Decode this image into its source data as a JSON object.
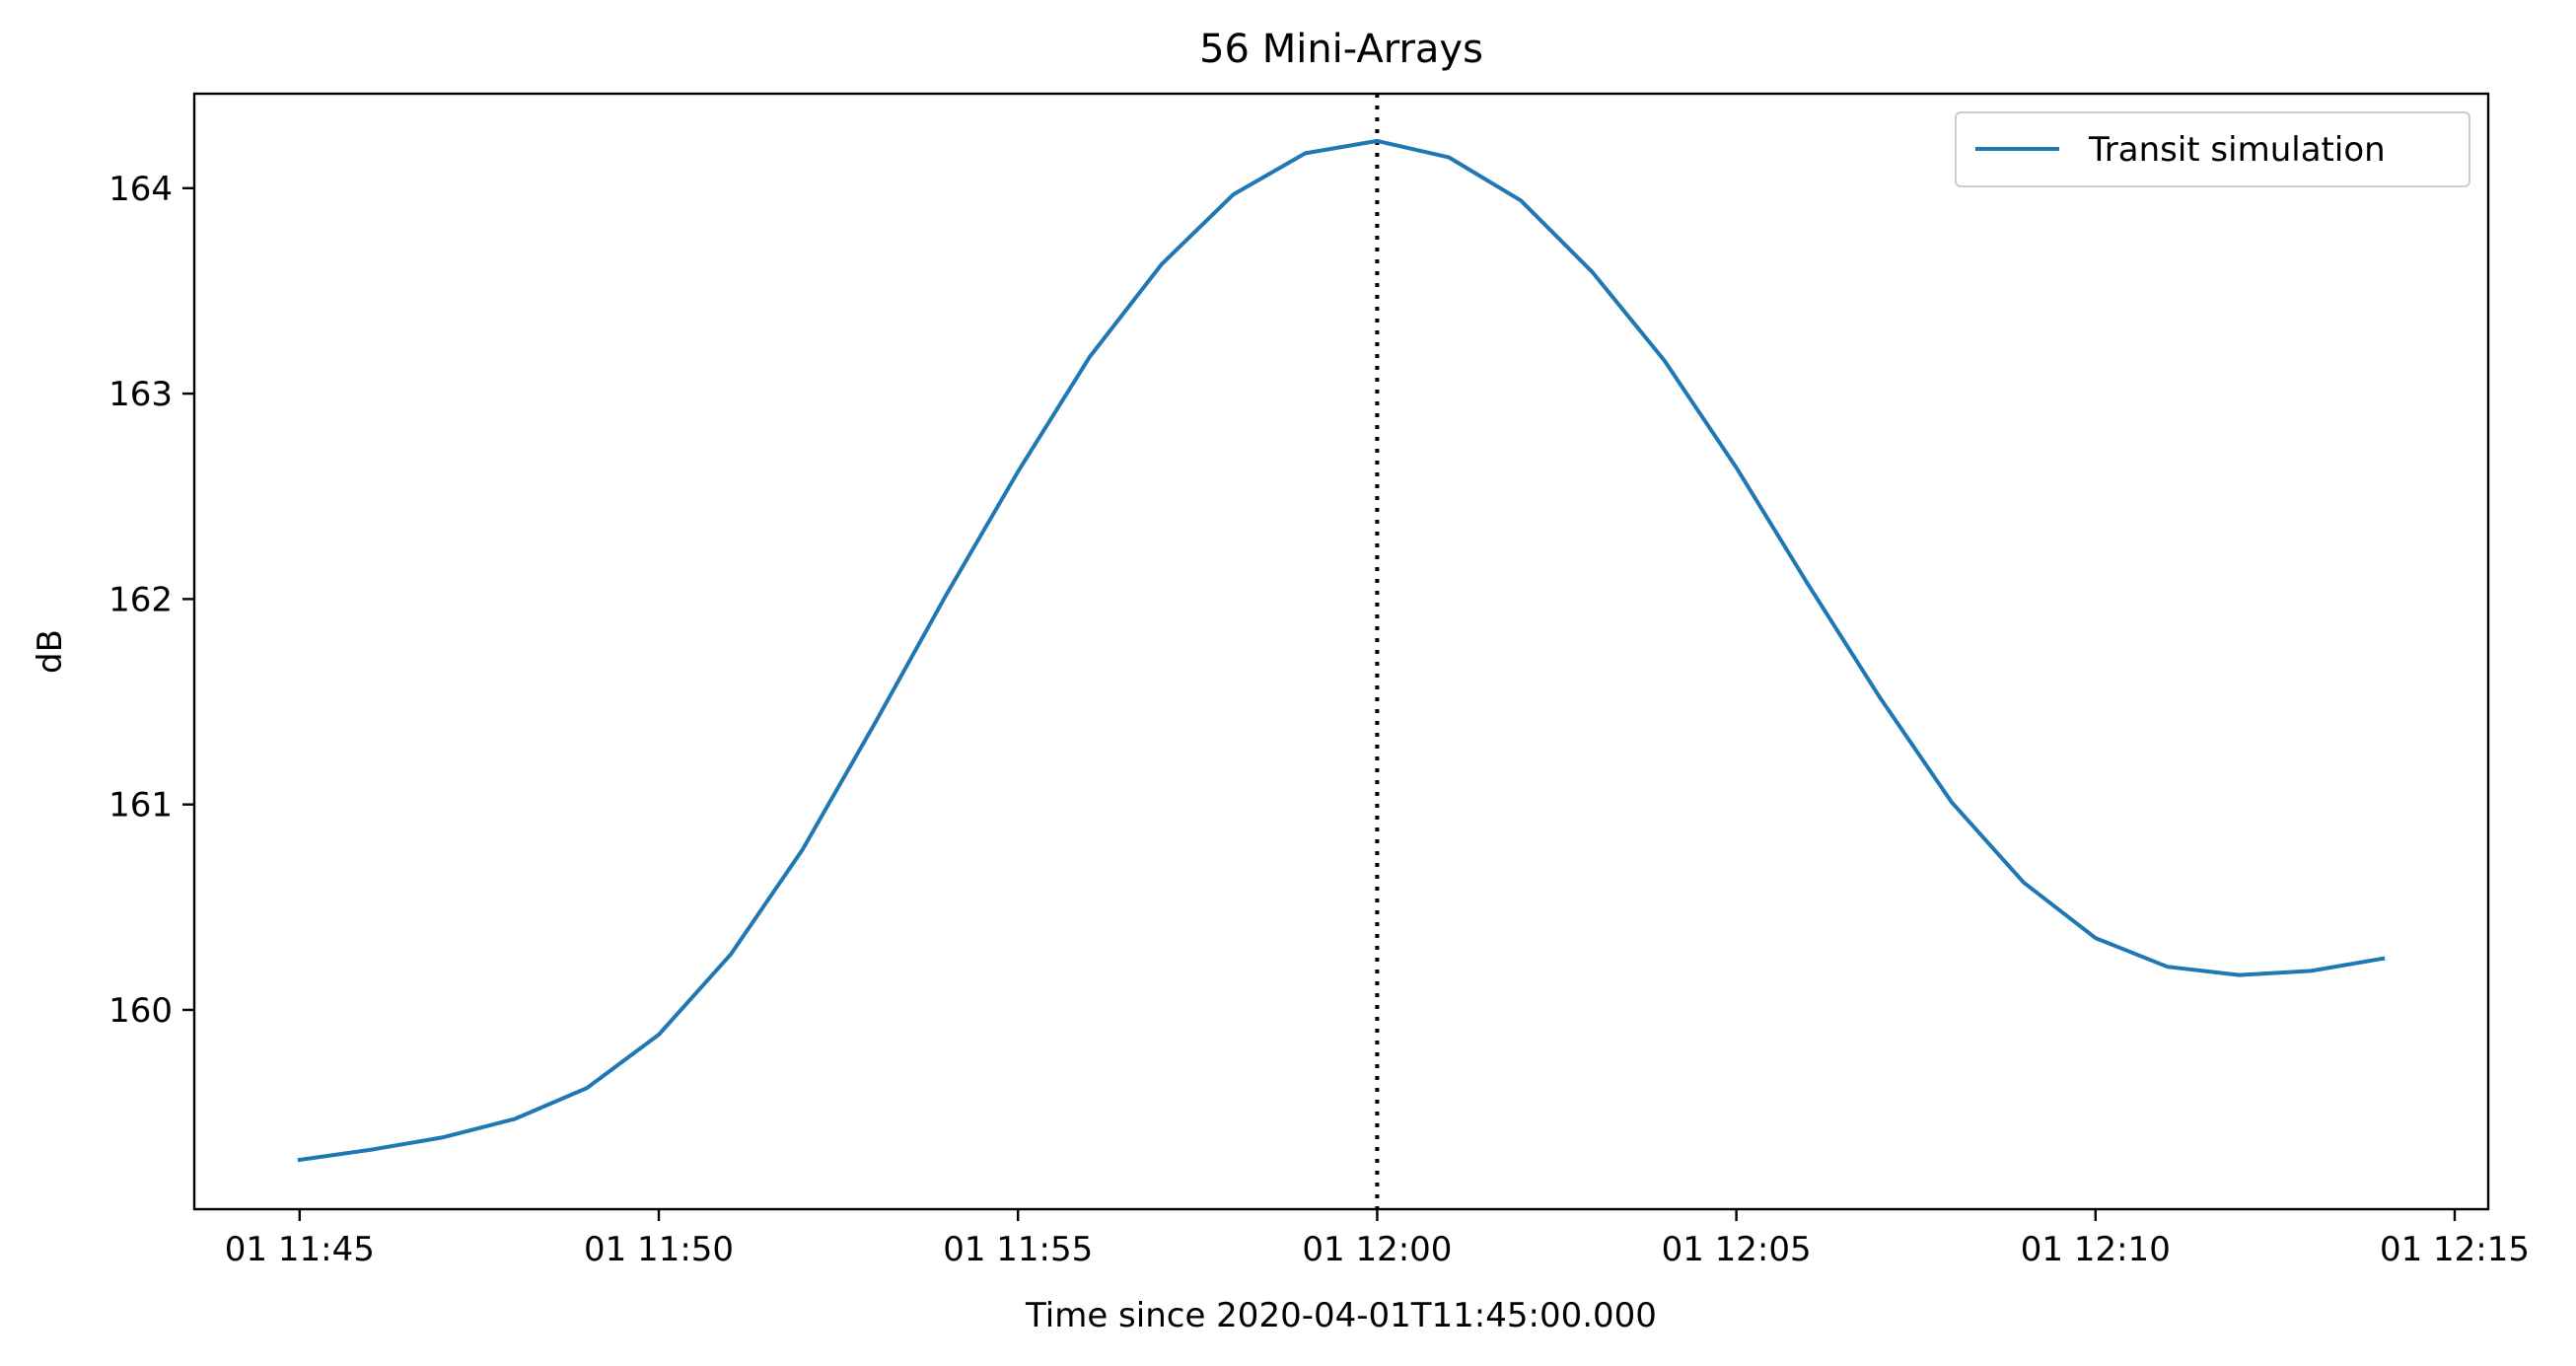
{
  "chart_data": {
    "type": "line",
    "title": "56 Mini-Arrays",
    "xlabel": "Time since 2020-04-01T11:45:00.000",
    "ylabel": "dB",
    "x_ticks": [
      "01 11:45",
      "01 11:50",
      "01 11:55",
      "01 12:00",
      "01 12:05",
      "01 12:10",
      "01 12:15"
    ],
    "y_ticks": [
      "160",
      "161",
      "162",
      "163",
      "164"
    ],
    "xlim": [
      "2020-04-01T11:43:32",
      "2020-04-01T12:15:28"
    ],
    "ylim": [
      159.03,
      164.46
    ],
    "grid": false,
    "legend_position": "top-right",
    "series": [
      {
        "name": "Transit simulation",
        "color": "#1f77b4",
        "x": [
          "2020-04-01T11:45:00",
          "2020-04-01T11:46:00",
          "2020-04-01T11:47:00",
          "2020-04-01T11:48:00",
          "2020-04-01T11:49:00",
          "2020-04-01T11:50:00",
          "2020-04-01T11:51:00",
          "2020-04-01T11:52:00",
          "2020-04-01T11:53:00",
          "2020-04-01T11:54:00",
          "2020-04-01T11:55:00",
          "2020-04-01T11:56:00",
          "2020-04-01T11:57:00",
          "2020-04-01T11:58:00",
          "2020-04-01T11:59:00",
          "2020-04-01T12:00:00",
          "2020-04-01T12:01:00",
          "2020-04-01T12:02:00",
          "2020-04-01T12:03:00",
          "2020-04-01T12:04:00",
          "2020-04-01T12:05:00",
          "2020-04-01T12:06:00",
          "2020-04-01T12:07:00",
          "2020-04-01T12:08:00",
          "2020-04-01T12:09:00",
          "2020-04-01T12:10:00",
          "2020-04-01T12:11:00",
          "2020-04-01T12:12:00",
          "2020-04-01T12:13:00",
          "2020-04-01T12:14:00"
        ],
        "y": [
          159.27,
          159.32,
          159.38,
          159.47,
          159.62,
          159.88,
          160.27,
          160.78,
          161.39,
          162.02,
          162.62,
          163.18,
          163.63,
          163.97,
          164.17,
          164.23,
          164.15,
          163.94,
          163.59,
          163.16,
          162.64,
          162.07,
          161.52,
          161.01,
          160.62,
          160.35,
          160.21,
          160.17,
          160.19,
          160.25
        ]
      }
    ],
    "annotations": [
      {
        "type": "vertical_line",
        "x": "2020-04-01T12:00:00",
        "style": "dotted",
        "color": "#000000"
      }
    ]
  }
}
